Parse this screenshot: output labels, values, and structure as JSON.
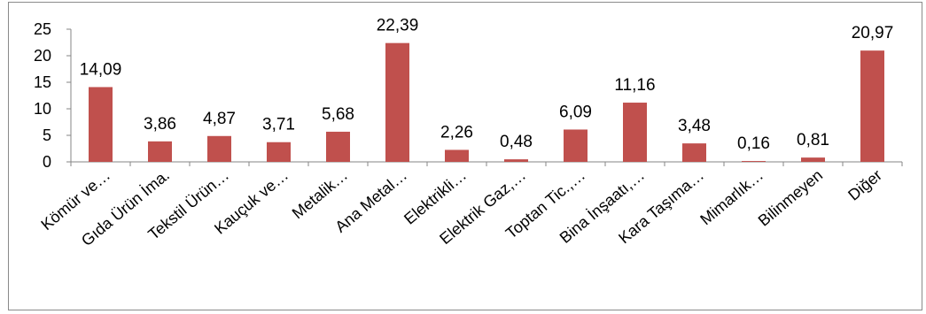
{
  "chart_data": {
    "type": "bar",
    "categories": [
      "Kömür ve…",
      "Gıda Ürün İma.",
      "Tekstil Ürün…",
      "Kauçuk ve…",
      "Metalik…",
      "Ana Metal…",
      "Elektrikli…",
      "Elektrik Gaz,…",
      "Toptan Tic.,…",
      "Bina İnşaatı,…",
      "Kara Taşıma…",
      "Mimarlık…",
      "Bilinmeyen",
      "Diğer"
    ],
    "values": [
      14.09,
      3.86,
      4.87,
      3.71,
      5.68,
      22.39,
      2.26,
      0.48,
      6.09,
      11.16,
      3.48,
      0.16,
      0.81,
      20.97
    ],
    "data_labels": [
      "14,09",
      "3,86",
      "4,87",
      "3,71",
      "5,68",
      "22,39",
      "2,26",
      "0,48",
      "6,09",
      "11,16",
      "3,48",
      "0,16",
      "0,81",
      "20,97"
    ],
    "y_ticks": [
      0,
      5,
      10,
      15,
      20,
      25
    ],
    "ylim": [
      0,
      25
    ],
    "title": "",
    "xlabel": "",
    "ylabel": "",
    "grid": false,
    "legend": "none",
    "bar_color": "#c0504d"
  }
}
